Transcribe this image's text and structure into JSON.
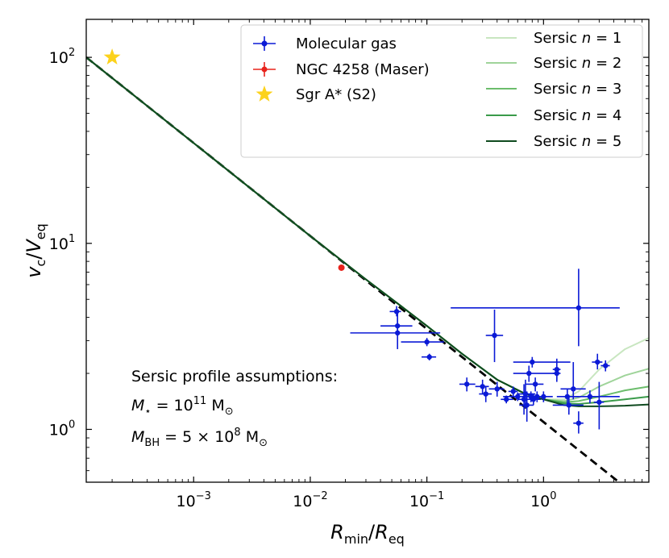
{
  "chart_data": {
    "type": "scatter",
    "xscale": "log",
    "yscale": "log",
    "xlim": [
      0.00012,
      8.0
    ],
    "ylim": [
      0.52,
      160
    ],
    "xlabel": {
      "main": "R",
      "sub": "min",
      "sep": "/",
      "main2": "R",
      "sub2": "eq"
    },
    "ylabel": {
      "main": "v",
      "sub": "c",
      "sep": "/",
      "main2": "V",
      "sub2": "eq"
    },
    "x_ticks": [
      {
        "value": 0.001,
        "base": "10",
        "exp": "−3"
      },
      {
        "value": 0.01,
        "base": "10",
        "exp": "−2"
      },
      {
        "value": 0.1,
        "base": "10",
        "exp": "−1"
      },
      {
        "value": 1,
        "base": "10",
        "exp": "0"
      }
    ],
    "y_ticks": [
      {
        "value": 1,
        "base": "10",
        "exp": "0"
      },
      {
        "value": 10,
        "base": "10",
        "exp": "1"
      },
      {
        "value": 100,
        "base": "10",
        "exp": "2"
      }
    ],
    "colors": {
      "molecular_gas": "#0b1ad6",
      "maser": "#e8231c",
      "sgra": "#fcd21c",
      "dashed": "#000000",
      "sersic": [
        "#c8e6c0",
        "#9fd49a",
        "#6cbd6c",
        "#3a9b4a",
        "#0f4a1f"
      ]
    },
    "legend": {
      "points": [
        {
          "label": "Molecular gas",
          "marker": "errorbar",
          "color": "#0b1ad6"
        },
        {
          "label": "NGC 4258 (Maser)",
          "marker": "errorbar",
          "color": "#e8231c"
        },
        {
          "label": "Sgr A* (S2)",
          "marker": "star",
          "color": "#fcd21c"
        }
      ],
      "lines": [
        {
          "label": "Sersic",
          "var": "n",
          "eq": " = ",
          "num": "1"
        },
        {
          "label": "Sersic",
          "var": "n",
          "eq": " = ",
          "num": "2"
        },
        {
          "label": "Sersic",
          "var": "n",
          "eq": " = ",
          "num": "3"
        },
        {
          "label": "Sersic",
          "var": "n",
          "eq": " = ",
          "num": "4"
        },
        {
          "label": "Sersic",
          "var": "n",
          "eq": " = ",
          "num": "5"
        }
      ]
    },
    "annotation": {
      "line1": "Sersic profile assumptions:",
      "mstar": {
        "lhs": "M",
        "sub": "⋆",
        "eq": " = 10",
        "exp": "11",
        "unit": " M",
        "unitsub": "⊙"
      },
      "mbh": {
        "lhs": "M",
        "sub": "BH",
        "eq": " = 5 × 10",
        "exp": "8",
        "unit": " M",
        "unitsub": "⊙"
      }
    },
    "series": [
      {
        "name": "Molecular gas",
        "points": [
          {
            "x": 0.055,
            "y": 4.3,
            "xlo": 0.048,
            "xhi": 0.06,
            "ylo": 4.05,
            "yhi": 4.6
          },
          {
            "x": 0.056,
            "y": 3.6,
            "xlo": 0.04,
            "xhi": 0.075,
            "ylo": 3.3,
            "yhi": 4.0
          },
          {
            "x": 0.056,
            "y": 3.3,
            "xlo": 0.022,
            "xhi": 0.13,
            "ylo": 2.7,
            "yhi": 4.3
          },
          {
            "x": 0.1,
            "y": 2.95,
            "xlo": 0.06,
            "xhi": 0.14,
            "ylo": 2.8,
            "yhi": 3.1
          },
          {
            "x": 0.105,
            "y": 2.45,
            "xlo": 0.09,
            "xhi": 0.12,
            "ylo": 2.35,
            "yhi": 2.55
          },
          {
            "x": 0.22,
            "y": 1.75,
            "xlo": 0.19,
            "xhi": 0.26,
            "ylo": 1.6,
            "yhi": 1.9
          },
          {
            "x": 0.3,
            "y": 1.7,
            "xlo": 0.26,
            "xhi": 0.34,
            "ylo": 1.55,
            "yhi": 1.85
          },
          {
            "x": 0.32,
            "y": 1.55,
            "xlo": 0.28,
            "xhi": 0.36,
            "ylo": 1.4,
            "yhi": 1.7
          },
          {
            "x": 0.38,
            "y": 3.2,
            "xlo": 0.32,
            "xhi": 0.45,
            "ylo": 2.3,
            "yhi": 4.4
          },
          {
            "x": 0.4,
            "y": 1.65,
            "xlo": 0.34,
            "xhi": 0.46,
            "ylo": 1.5,
            "yhi": 1.8
          },
          {
            "x": 0.48,
            "y": 1.45,
            "xlo": 0.43,
            "xhi": 0.55,
            "ylo": 1.38,
            "yhi": 1.52
          },
          {
            "x": 0.55,
            "y": 1.6,
            "xlo": 0.5,
            "xhi": 0.6,
            "ylo": 1.5,
            "yhi": 1.7
          },
          {
            "x": 0.6,
            "y": 1.5,
            "xlo": 0.45,
            "xhi": 0.75,
            "ylo": 1.42,
            "yhi": 1.58
          },
          {
            "x": 0.68,
            "y": 1.45,
            "xlo": 0.6,
            "xhi": 0.75,
            "ylo": 1.2,
            "yhi": 1.75
          },
          {
            "x": 0.7,
            "y": 1.55,
            "xlo": 0.6,
            "xhi": 0.85,
            "ylo": 1.3,
            "yhi": 1.85
          },
          {
            "x": 0.72,
            "y": 1.35,
            "xlo": 0.62,
            "xhi": 0.82,
            "ylo": 1.1,
            "yhi": 1.6
          },
          {
            "x": 0.75,
            "y": 2.0,
            "xlo": 0.55,
            "xhi": 1.25,
            "ylo": 1.8,
            "yhi": 2.2
          },
          {
            "x": 0.78,
            "y": 1.5,
            "xlo": 0.68,
            "xhi": 0.9,
            "ylo": 1.4,
            "yhi": 1.6
          },
          {
            "x": 0.8,
            "y": 2.3,
            "xlo": 0.55,
            "xhi": 1.7,
            "ylo": 2.15,
            "yhi": 2.45
          },
          {
            "x": 0.82,
            "y": 1.45,
            "xlo": 0.72,
            "xhi": 0.95,
            "ylo": 1.35,
            "yhi": 1.55
          },
          {
            "x": 0.85,
            "y": 1.75,
            "xlo": 0.7,
            "xhi": 1.0,
            "ylo": 1.6,
            "yhi": 1.9
          },
          {
            "x": 0.88,
            "y": 1.5,
            "xlo": 0.75,
            "xhi": 1.05,
            "ylo": 1.4,
            "yhi": 1.6
          },
          {
            "x": 1.0,
            "y": 1.5,
            "xlo": 0.85,
            "xhi": 1.2,
            "ylo": 1.4,
            "yhi": 1.6
          },
          {
            "x": 1.3,
            "y": 2.1,
            "xlo": 1.2,
            "xhi": 1.4,
            "ylo": 1.8,
            "yhi": 2.4
          },
          {
            "x": 1.3,
            "y": 2.0,
            "xlo": 1.2,
            "xhi": 1.4,
            "ylo": 1.85,
            "yhi": 2.15
          },
          {
            "x": 1.6,
            "y": 1.5,
            "xlo": 1.3,
            "xhi": 2.0,
            "ylo": 1.35,
            "yhi": 1.65
          },
          {
            "x": 1.65,
            "y": 1.35,
            "xlo": 1.2,
            "xhi": 2.2,
            "ylo": 1.2,
            "yhi": 1.5
          },
          {
            "x": 1.8,
            "y": 1.65,
            "xlo": 1.4,
            "xhi": 2.3,
            "ylo": 1.45,
            "yhi": 2.3
          },
          {
            "x": 2.0,
            "y": 4.5,
            "xlo": 0.16,
            "xhi": 4.5,
            "ylo": 2.8,
            "yhi": 7.3
          },
          {
            "x": 2.0,
            "y": 1.08,
            "xlo": 1.8,
            "xhi": 2.2,
            "ylo": 0.95,
            "yhi": 1.25
          },
          {
            "x": 2.5,
            "y": 1.5,
            "xlo": 1.5,
            "xhi": 4.5,
            "ylo": 1.38,
            "yhi": 1.62
          },
          {
            "x": 2.9,
            "y": 2.3,
            "xlo": 2.6,
            "xhi": 3.2,
            "ylo": 2.1,
            "yhi": 2.55
          },
          {
            "x": 3.0,
            "y": 1.4,
            "xlo": 2.7,
            "xhi": 3.3,
            "ylo": 1.0,
            "yhi": 1.8
          },
          {
            "x": 3.4,
            "y": 2.2,
            "xlo": 3.1,
            "xhi": 3.7,
            "ylo": 2.05,
            "yhi": 2.35
          }
        ]
      },
      {
        "name": "NGC 4258 (Maser)",
        "points": [
          {
            "x": 0.0185,
            "y": 7.4
          }
        ]
      },
      {
        "name": "Sgr A* (S2)",
        "points": [
          {
            "x": 0.0002,
            "y": 100
          }
        ]
      },
      {
        "name": "Keplerian (dashed)",
        "x": [
          0.00012,
          4.5
        ],
        "y": [
          100,
          0.5165
        ]
      },
      {
        "name": "Sersic n = 1",
        "x": [
          0.00012,
          0.01,
          0.03,
          0.06,
          0.1,
          0.2,
          0.4,
          0.7,
          1.0,
          1.5,
          2.0,
          3.0,
          5.0,
          8.0
        ],
        "y": [
          100,
          10.95,
          6.4,
          4.6,
          3.6,
          2.55,
          1.85,
          1.55,
          1.45,
          1.45,
          1.6,
          2.1,
          2.7,
          3.1
        ]
      },
      {
        "name": "Sersic n = 2",
        "x": [
          0.00012,
          0.01,
          0.03,
          0.06,
          0.1,
          0.2,
          0.4,
          0.7,
          1.0,
          1.5,
          2.0,
          3.0,
          5.0,
          8.0
        ],
        "y": [
          100,
          10.95,
          6.4,
          4.6,
          3.6,
          2.55,
          1.85,
          1.55,
          1.45,
          1.42,
          1.48,
          1.7,
          1.95,
          2.12
        ]
      },
      {
        "name": "Sersic n = 3",
        "x": [
          0.00012,
          0.01,
          0.03,
          0.06,
          0.1,
          0.2,
          0.4,
          0.7,
          1.0,
          1.5,
          2.0,
          3.0,
          5.0,
          8.0
        ],
        "y": [
          100,
          10.95,
          6.4,
          4.6,
          3.6,
          2.55,
          1.85,
          1.55,
          1.45,
          1.4,
          1.42,
          1.5,
          1.62,
          1.7
        ]
      },
      {
        "name": "Sersic n = 4",
        "x": [
          0.00012,
          0.01,
          0.03,
          0.06,
          0.1,
          0.2,
          0.4,
          0.7,
          1.0,
          1.5,
          2.0,
          3.0,
          5.0,
          8.0
        ],
        "y": [
          100,
          10.95,
          6.4,
          4.6,
          3.6,
          2.55,
          1.85,
          1.55,
          1.45,
          1.38,
          1.37,
          1.4,
          1.45,
          1.5
        ]
      },
      {
        "name": "Sersic n = 5",
        "x": [
          0.00012,
          0.01,
          0.03,
          0.06,
          0.1,
          0.2,
          0.4,
          0.7,
          1.0,
          1.5,
          2.0,
          3.0,
          5.0,
          8.0
        ],
        "y": [
          100,
          10.95,
          6.4,
          4.6,
          3.6,
          2.55,
          1.85,
          1.55,
          1.45,
          1.35,
          1.33,
          1.33,
          1.34,
          1.36
        ]
      }
    ]
  }
}
